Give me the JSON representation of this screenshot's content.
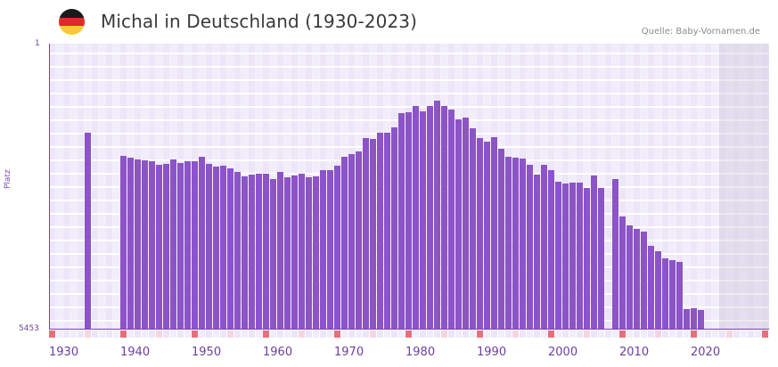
{
  "header": {
    "title": "Michal in Deutschland (1930-2023)",
    "source": "Quelle: Baby-Vornamen.de",
    "flag_colors": [
      "#1a1a1a",
      "#dd2a2a",
      "#f6cd2e"
    ]
  },
  "axes": {
    "y_top_label": "1",
    "y_bottom_label": "5453",
    "y_title": "Platz",
    "x_labels": [
      "1930",
      "1940",
      "1950",
      "1960",
      "1970",
      "1980",
      "1990",
      "2000",
      "2010",
      "2020"
    ]
  },
  "colors": {
    "bar": "#8c54c6",
    "axis": "#7b3fb0",
    "decade_tick": "#e57078",
    "mid_tick": "#f5d6de"
  },
  "chart_data": {
    "type": "bar",
    "title": "Michal in Deutschland (1930-2023)",
    "xlabel": "",
    "ylabel": "Platz",
    "ylim": [
      5453,
      1
    ],
    "y_inverted": true,
    "grid": true,
    "x_range": [
      1930,
      2030
    ],
    "shaded_future_from": 2023,
    "x": [
      1935,
      1940,
      1941,
      1942,
      1943,
      1944,
      1945,
      1946,
      1947,
      1948,
      1949,
      1950,
      1951,
      1952,
      1953,
      1954,
      1955,
      1956,
      1957,
      1958,
      1959,
      1960,
      1961,
      1962,
      1963,
      1964,
      1965,
      1966,
      1967,
      1968,
      1969,
      1970,
      1971,
      1972,
      1973,
      1974,
      1975,
      1976,
      1977,
      1978,
      1979,
      1980,
      1981,
      1982,
      1983,
      1984,
      1985,
      1986,
      1987,
      1988,
      1989,
      1990,
      1991,
      1992,
      1993,
      1994,
      1995,
      1996,
      1997,
      1998,
      1999,
      2000,
      2001,
      2002,
      2003,
      2004,
      2005,
      2006,
      2007,
      2009,
      2010,
      2011,
      2012,
      2013,
      2014,
      2015,
      2016,
      2017,
      2018,
      2019,
      2020,
      2021
    ],
    "values": [
      1700,
      2143,
      2177,
      2211,
      2228,
      2245,
      2313,
      2296,
      2211,
      2279,
      2245,
      2245,
      2160,
      2296,
      2347,
      2330,
      2381,
      2449,
      2534,
      2500,
      2483,
      2483,
      2585,
      2449,
      2551,
      2517,
      2483,
      2551,
      2534,
      2415,
      2415,
      2330,
      2160,
      2109,
      2058,
      1803,
      1820,
      1700,
      1700,
      1599,
      1327,
      1310,
      1191,
      1293,
      1191,
      1089,
      1191,
      1259,
      1446,
      1412,
      1616,
      1803,
      1871,
      1786,
      2007,
      2160,
      2177,
      2194,
      2313,
      2500,
      2313,
      2415,
      2636,
      2670,
      2653,
      2653,
      2755,
      2517,
      2755,
      2585,
      3298,
      3468,
      3536,
      3587,
      3859,
      3961,
      4097,
      4131,
      4165,
      5065,
      5048,
      5082
    ]
  }
}
